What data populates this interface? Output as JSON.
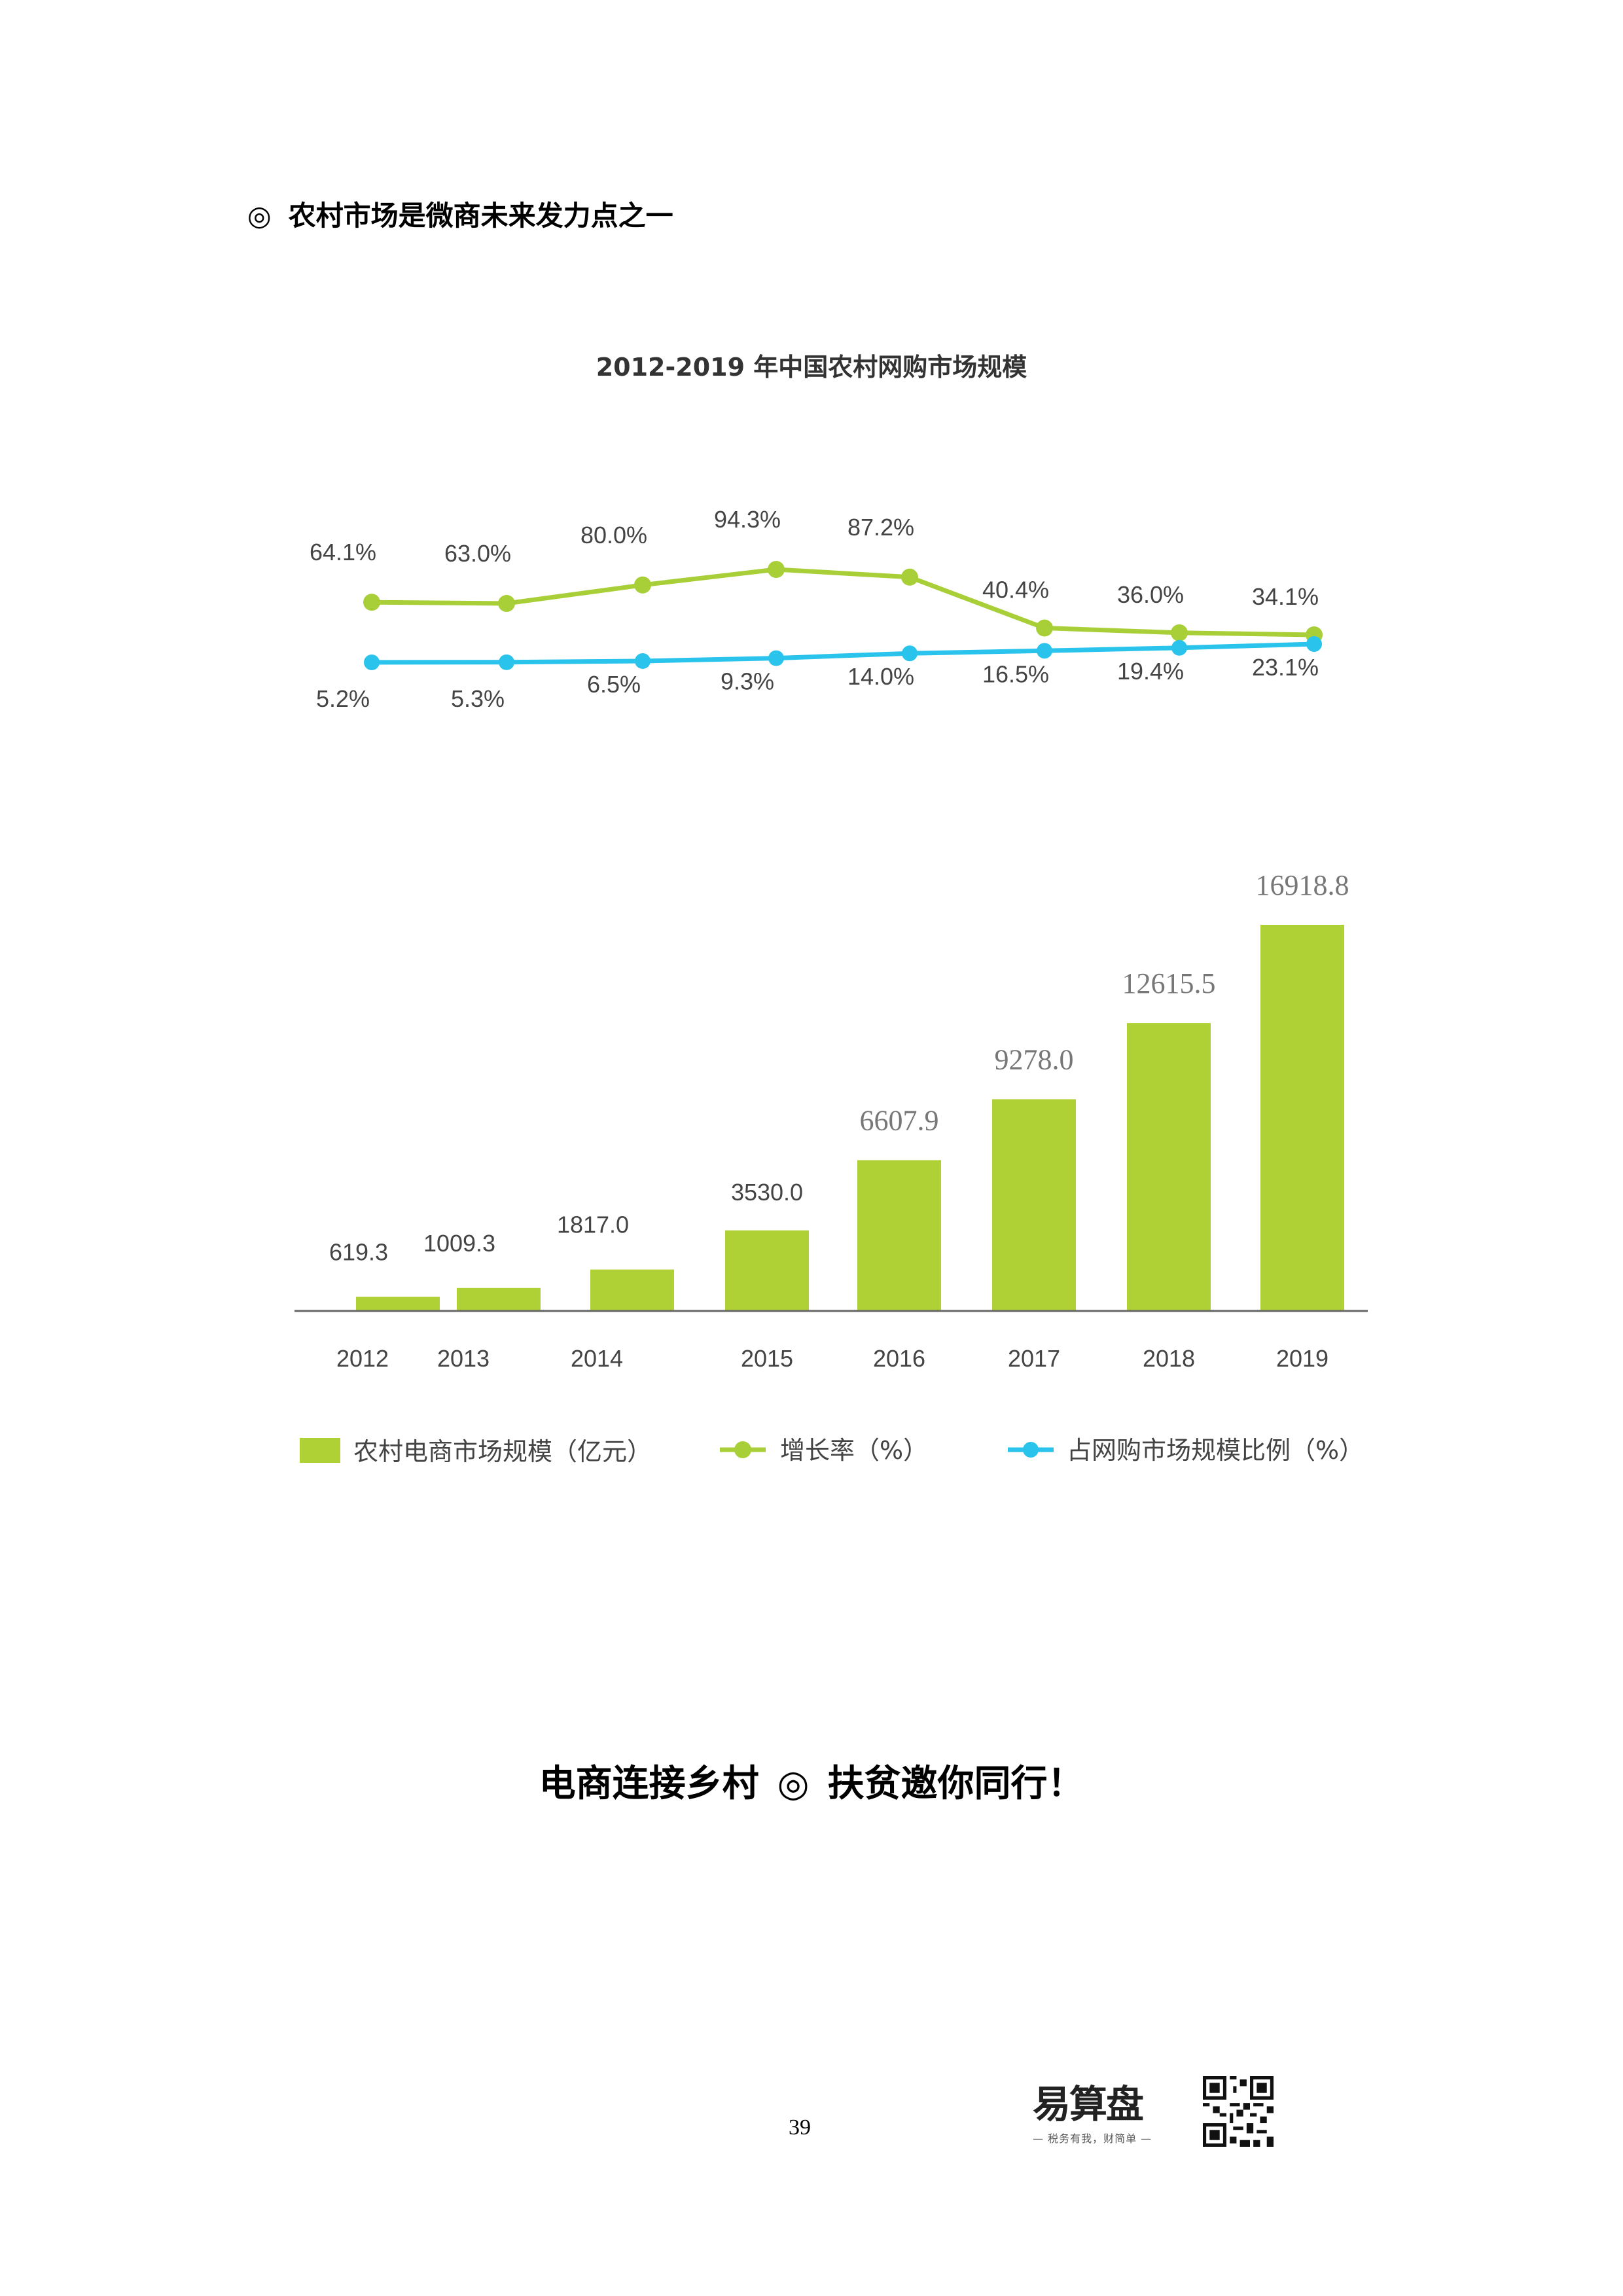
{
  "heading": {
    "mark": "◎",
    "text": "农村市场是微商未来发力点之一"
  },
  "chart_data": {
    "type": "bar",
    "title": "2012-2019 年中国农村网购市场规模",
    "categories": [
      "2012",
      "2013",
      "2014",
      "2015",
      "2016",
      "2017",
      "2018",
      "2019"
    ],
    "series": [
      {
        "name": "农村电商市场规模（亿元）",
        "type": "bar",
        "values": [
          619.3,
          1009.3,
          1817.0,
          3530.0,
          6607.9,
          9278.0,
          12615.5,
          16918.8
        ],
        "labels": [
          "619.3",
          "1009.3",
          "1817.0",
          "3530.0",
          "6607.9",
          "9278.0",
          "12615.5",
          "16918.8"
        ]
      },
      {
        "name": "增长率（%）",
        "type": "line",
        "values": [
          64.1,
          63.0,
          80.0,
          94.3,
          87.2,
          40.4,
          36.0,
          34.1
        ],
        "labels": [
          "64.1%",
          "63.0%",
          "80.0%",
          "94.3%",
          "87.2%",
          "40.4%",
          "36.0%",
          "34.1%"
        ]
      },
      {
        "name": "占网购市场规模比例（%）",
        "type": "line",
        "values": [
          5.2,
          5.3,
          6.5,
          9.3,
          14.0,
          16.5,
          19.4,
          23.1
        ],
        "labels": [
          "5.2%",
          "5.3%",
          "6.5%",
          "9.3%",
          "14.0%",
          "16.5%",
          "19.4%",
          "23.1%"
        ]
      }
    ],
    "colors": {
      "bar": "#b0d136",
      "growth": "#a8cf38",
      "share": "#29c3ec"
    },
    "legend_position": "bottom",
    "grid": false
  },
  "slogan": {
    "left": "电商连接乡村",
    "mark": "◎",
    "right": "扶贫邀你同行！"
  },
  "page_number": "39",
  "logo": {
    "name": "易算盘",
    "tagline": "— 税务有我，财简单 —"
  }
}
